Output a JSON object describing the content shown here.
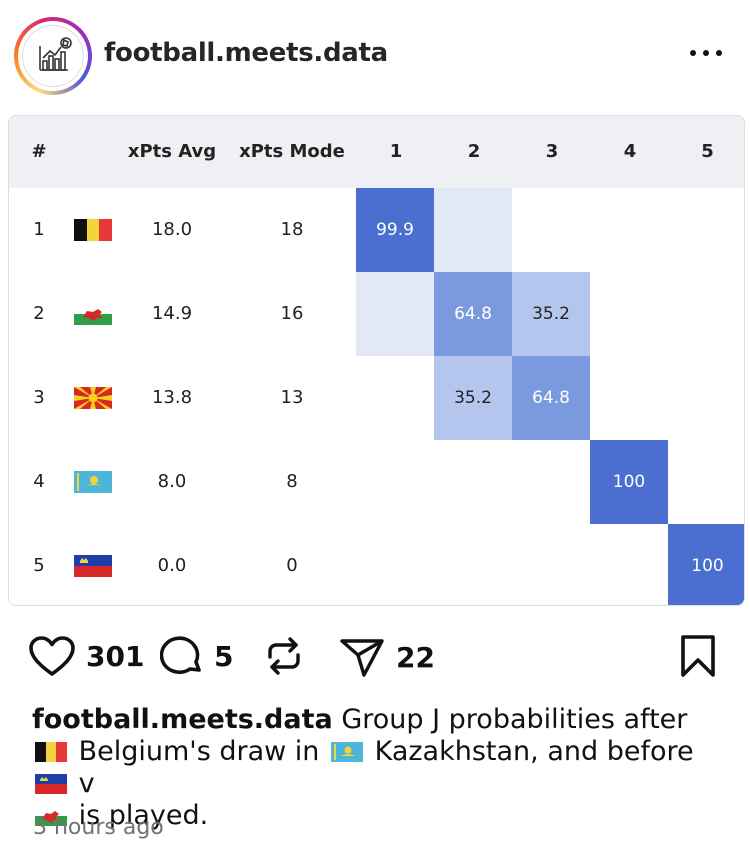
{
  "header": {
    "username": "football.meets.data",
    "avatar_icon": "chart-football-icon",
    "more_icon": "more-options-icon"
  },
  "table": {
    "columns": [
      "#",
      "",
      "xPts Avg",
      "xPts Mode",
      "1",
      "2",
      "3",
      "4",
      "5"
    ],
    "rows": [
      {
        "rank": "1",
        "flag": "belgium-flag-icon",
        "xpts_avg": "18.0",
        "xpts_mode": "18"
      },
      {
        "rank": "2",
        "flag": "wales-flag-icon",
        "xpts_avg": "14.9",
        "xpts_mode": "16"
      },
      {
        "rank": "3",
        "flag": "north-macedonia-flag-icon",
        "xpts_avg": "13.8",
        "xpts_mode": "13"
      },
      {
        "rank": "4",
        "flag": "kazakhstan-flag-icon",
        "xpts_avg": "8.0",
        "xpts_mode": "8"
      },
      {
        "rank": "5",
        "flag": "liechtenstein-flag-icon",
        "xpts_avg": "0.0",
        "xpts_mode": "0"
      }
    ],
    "probabilities": [
      {
        "row": 1,
        "col": 1,
        "value": "99.9",
        "level": 99.9
      },
      {
        "row": 1,
        "col": 2,
        "value": "",
        "level": 0.1
      },
      {
        "row": 2,
        "col": 1,
        "value": "",
        "level": 0.1
      },
      {
        "row": 2,
        "col": 2,
        "value": "64.8",
        "level": 64.8
      },
      {
        "row": 2,
        "col": 3,
        "value": "35.2",
        "level": 35.2
      },
      {
        "row": 3,
        "col": 2,
        "value": "35.2",
        "level": 35.2
      },
      {
        "row": 3,
        "col": 3,
        "value": "64.8",
        "level": 64.8
      },
      {
        "row": 4,
        "col": 4,
        "value": "100",
        "level": 100
      },
      {
        "row": 5,
        "col": 5,
        "value": "100",
        "level": 100
      }
    ]
  },
  "actions": {
    "like_count": "301",
    "comment_count": "5",
    "share_count": "22",
    "like_icon": "heart-icon",
    "comment_icon": "comment-icon",
    "repost_icon": "repost-icon",
    "share_icon": "send-icon",
    "save_icon": "bookmark-icon"
  },
  "caption": {
    "username": "football.meets.data",
    "part1": "Group J probabilities after",
    "part2": "Belgium's draw in",
    "part3": "Kazakhstan, and before",
    "part4": "v",
    "part5": "is played."
  },
  "timestamp": "3 hours ago",
  "colors": {
    "strong": "#4a6fd1",
    "medium": "#7b99de",
    "light": "#b5c6ee",
    "faint": "#e2e8f4",
    "header_bg": "#eef0f3"
  }
}
